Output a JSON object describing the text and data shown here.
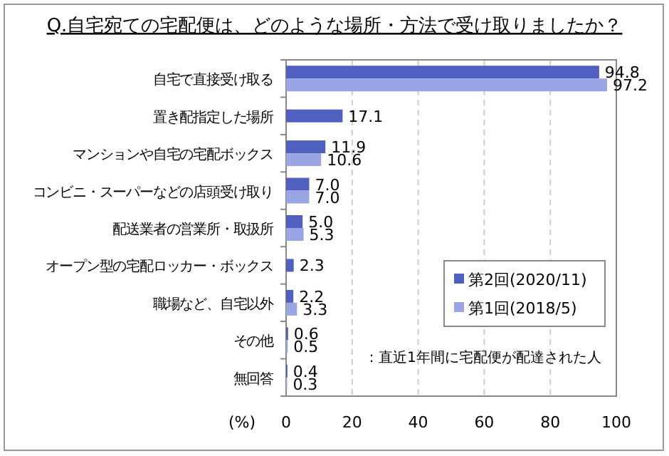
{
  "chart_data": {
    "type": "bar",
    "orientation": "horizontal",
    "title": "Q.自宅宛ての宅配便は、どのような場所・方法で受け取りましたか？",
    "xlabel": "(%)",
    "categories": [
      "自宅で直接受け取る",
      "置き配指定した場所",
      "マンションや自宅の宅配ボックス",
      "コンビニ・スーパーなどの店頭受け取り",
      "配送業者の営業所・取扱所",
      "オープン型の宅配ロッカー・ボックス",
      "職場など、自宅以外",
      "その他",
      "無回答"
    ],
    "series": [
      {
        "name": "第2回(2020/11)",
        "color": "#5060c0",
        "values": [
          94.8,
          17.1,
          11.9,
          7.0,
          5.0,
          2.3,
          2.2,
          0.6,
          0.4
        ],
        "value_labels": [
          "94.8",
          "17.1",
          "11.9",
          "7.0",
          "5.0",
          "2.3",
          "2.2",
          "0.6",
          "0.4"
        ]
      },
      {
        "name": "第1回(2018/5)",
        "color": "#9aa6e4",
        "values": [
          97.2,
          null,
          10.6,
          7.0,
          5.3,
          null,
          3.3,
          0.5,
          0.3
        ],
        "value_labels": [
          "97.2",
          null,
          "10.6",
          "7.0",
          "5.3",
          null,
          "3.3",
          "0.5",
          "0.3"
        ]
      }
    ],
    "xlim": [
      0,
      100
    ],
    "xticks": [
      0,
      20,
      40,
      60,
      80,
      100
    ],
    "grid": "x",
    "legend": "bottom right",
    "annotations": [
      "：直近1年間に宅配便が配達された人"
    ]
  }
}
